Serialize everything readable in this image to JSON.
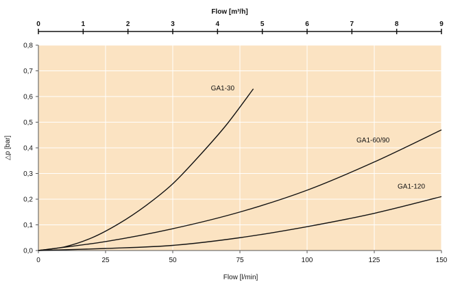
{
  "chart_data": {
    "type": "line",
    "title": "",
    "xlabel": "Flow [l/min]",
    "ylabel": "△p [bar]",
    "x2label": "Flow [m³/h]",
    "xlim": [
      0,
      150
    ],
    "ylim": [
      0,
      0.8
    ],
    "x2lim": [
      0,
      9
    ],
    "grid": true,
    "background_color": "#fbe3c2",
    "line_color": "#111111",
    "x_ticks": [
      0,
      25,
      50,
      75,
      100,
      125,
      150
    ],
    "x_tick_labels": [
      "0",
      "25",
      "50",
      "75",
      "100",
      "125",
      "150"
    ],
    "y_ticks": [
      0,
      0.1,
      0.2,
      0.3,
      0.4,
      0.5,
      0.6,
      0.7,
      0.8
    ],
    "y_tick_labels": [
      "0,0",
      "0,1",
      "0,2",
      "0,3",
      "0,4",
      "0,5",
      "0,6",
      "0,7",
      "0,8"
    ],
    "x2_ticks": [
      0,
      1,
      2,
      3,
      4,
      5,
      6,
      7,
      8,
      9
    ],
    "x2_tick_labels": [
      "0",
      "1",
      "2",
      "3",
      "4",
      "5",
      "6",
      "7",
      "8",
      "9"
    ],
    "series": [
      {
        "name": "GA1-30",
        "x": [
          0,
          10,
          20,
          30,
          40,
          50,
          60,
          70,
          80
        ],
        "values": [
          0.0,
          0.015,
          0.05,
          0.105,
          0.175,
          0.26,
          0.37,
          0.49,
          0.63
        ]
      },
      {
        "name": "GA1-60/90",
        "x": [
          0,
          25,
          50,
          75,
          100,
          125,
          150
        ],
        "values": [
          0.0,
          0.035,
          0.085,
          0.15,
          0.235,
          0.345,
          0.47
        ]
      },
      {
        "name": "GA1-120",
        "x": [
          0,
          25,
          50,
          75,
          100,
          125,
          150
        ],
        "values": [
          0.0,
          0.008,
          0.02,
          0.05,
          0.093,
          0.145,
          0.21
        ]
      }
    ]
  }
}
